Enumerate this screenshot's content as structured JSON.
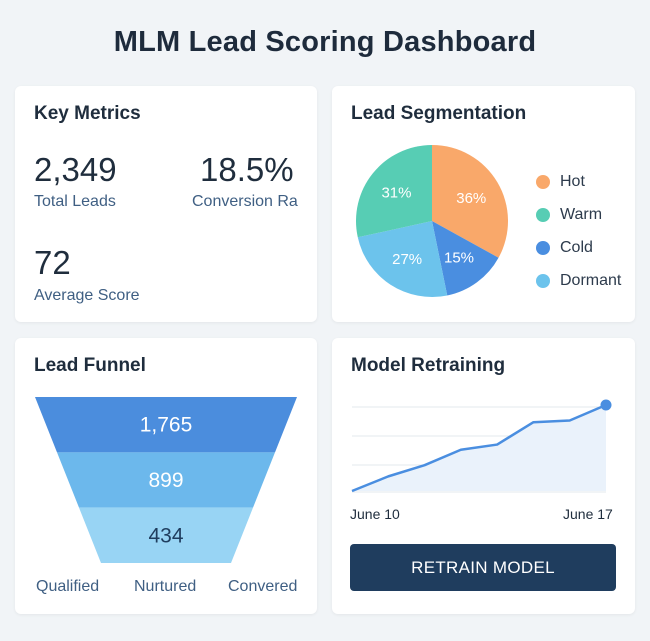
{
  "page": {
    "title": "MLM Lead Scoring Dashboard"
  },
  "metrics": {
    "title": "Key Metrics",
    "total_leads": {
      "value": "2,349",
      "label": "Total Leads"
    },
    "conversion": {
      "value": "18.5%",
      "label": "Conversion Ra"
    },
    "average_score": {
      "value": "72",
      "label": "Average Score"
    }
  },
  "segmentation": {
    "title": "Lead Segmentation",
    "slices": [
      {
        "name": "Hot",
        "value": 36,
        "label": "36%",
        "color": "#f9a86a"
      },
      {
        "name": "Cold",
        "value": 15,
        "label": "15%",
        "color": "#4a8ee0"
      },
      {
        "name": "Dormant",
        "value": 27,
        "label": "27%",
        "color": "#6cc3ec"
      },
      {
        "name": "Warm",
        "value": 31,
        "label": "31%",
        "color": "#57cdb4"
      }
    ],
    "legend": [
      {
        "name": "Hot",
        "color": "#f9a86a"
      },
      {
        "name": "Warm",
        "color": "#57cdb4"
      },
      {
        "name": "Cold",
        "color": "#4a8ee0"
      },
      {
        "name": "Dormant",
        "color": "#6cc3ec"
      }
    ]
  },
  "funnel": {
    "title": "Lead Funnel",
    "stages": [
      {
        "value": "1,765",
        "color": "#4b8ddd"
      },
      {
        "value": "899",
        "color": "#6cb8ec"
      },
      {
        "value": "434",
        "color": "#98d4f4"
      }
    ],
    "labels": [
      "Qualified",
      "Nurtured",
      "Convered"
    ]
  },
  "model": {
    "title": "Model Retraining",
    "start_date": "June 10",
    "end_date": "June 17",
    "button_label": "RETRAIN MODEL"
  },
  "chart_data": {
    "type": "line",
    "title": "Model Retraining",
    "x": [
      "June 10",
      "",
      "",
      "",
      "",
      "",
      "",
      "June 17"
    ],
    "series": [
      {
        "values": [
          0.0,
          0.17,
          0.3,
          0.48,
          0.54,
          0.8,
          0.82,
          1.0
        ]
      }
    ],
    "color": "#4a8ee0",
    "grid": true
  },
  "colors": {
    "accent": "#4a8ee0",
    "button": "#1f3d5e"
  }
}
